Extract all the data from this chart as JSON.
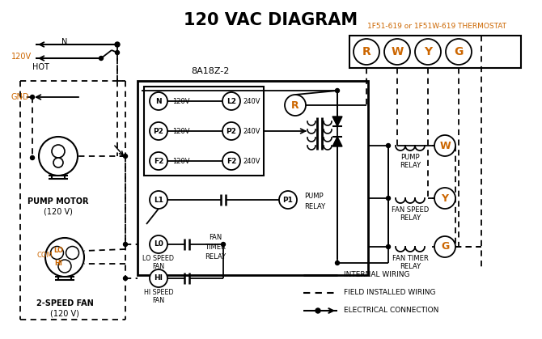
{
  "title": "120 VAC DIAGRAM",
  "bg_color": "#ffffff",
  "thermostat_label": "1F51-619 or 1F51W-619 THERMOSTAT",
  "thermostat_color": "#cc6600",
  "box_label": "8A18Z-2",
  "term_labels": [
    "R",
    "W",
    "Y",
    "G"
  ],
  "term_color": "#cc6600",
  "pump_motor_labels": [
    "PUMP MOTOR",
    "(120 V)"
  ],
  "fan_labels": [
    "2-SPEED FAN",
    "(120 V)"
  ],
  "legend": [
    {
      "label": "INTERNAL WIRING",
      "style": "solid"
    },
    {
      "label": "FIELD INSTALLED WIRING",
      "style": "dashed"
    },
    {
      "label": "ELECTRICAL CONNECTION",
      "style": "dot_arrow"
    }
  ],
  "left_terms": [
    [
      "N",
      "120V"
    ],
    [
      "P2",
      "120V"
    ],
    [
      "F2",
      "120V"
    ]
  ],
  "right_terms": [
    [
      "L2",
      "240V"
    ],
    [
      "P2",
      "240V"
    ],
    [
      "F2",
      "240V"
    ]
  ],
  "relay_labels": [
    [
      "PUMP",
      "RELAY"
    ],
    [
      "FAN SPEED",
      "RELAY"
    ],
    [
      "FAN TIMER",
      "RELAY"
    ]
  ],
  "relay_term_letters": [
    "W",
    "Y",
    "G"
  ]
}
